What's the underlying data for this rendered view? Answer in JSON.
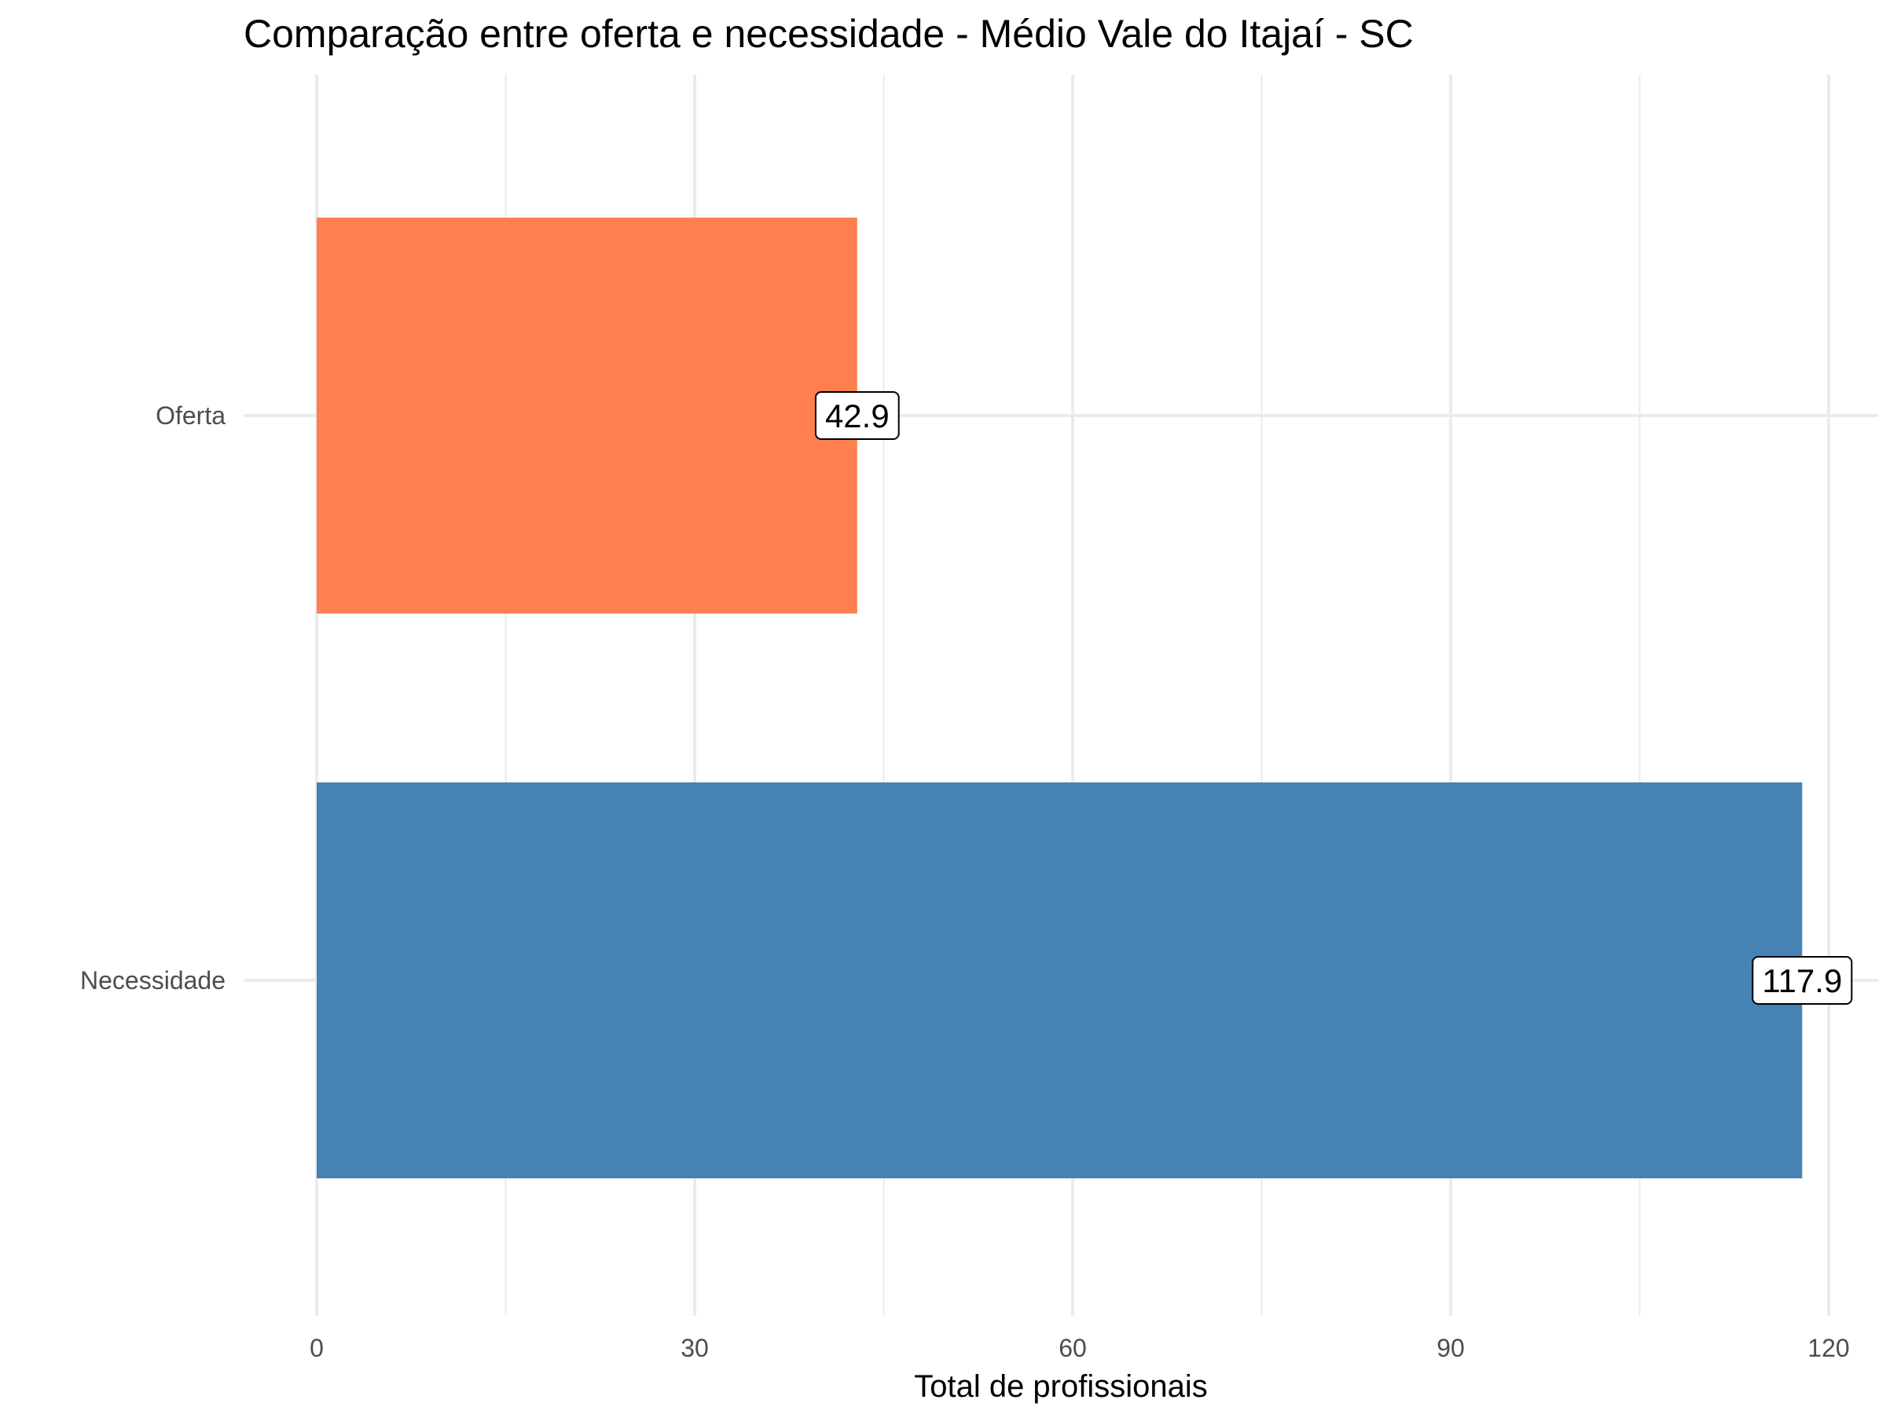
{
  "chart_data": {
    "type": "bar",
    "orientation": "horizontal",
    "title": "Comparação entre oferta e necessidade - Médio Vale do Itajaí - SC",
    "xlabel": "Total de profissionais",
    "ylabel": "",
    "categories": [
      "Oferta",
      "Necessidade"
    ],
    "values": [
      42.9,
      117.9
    ],
    "value_labels": [
      "42.9",
      "117.9"
    ],
    "colors": [
      "#FF7F50",
      "#4682B4"
    ],
    "x_ticks": [
      0,
      30,
      60,
      90,
      120
    ],
    "x_tick_labels": [
      "0",
      "30",
      "60",
      "90",
      "120"
    ],
    "xlim": [
      0,
      124
    ],
    "grid": true,
    "legend": "none"
  }
}
